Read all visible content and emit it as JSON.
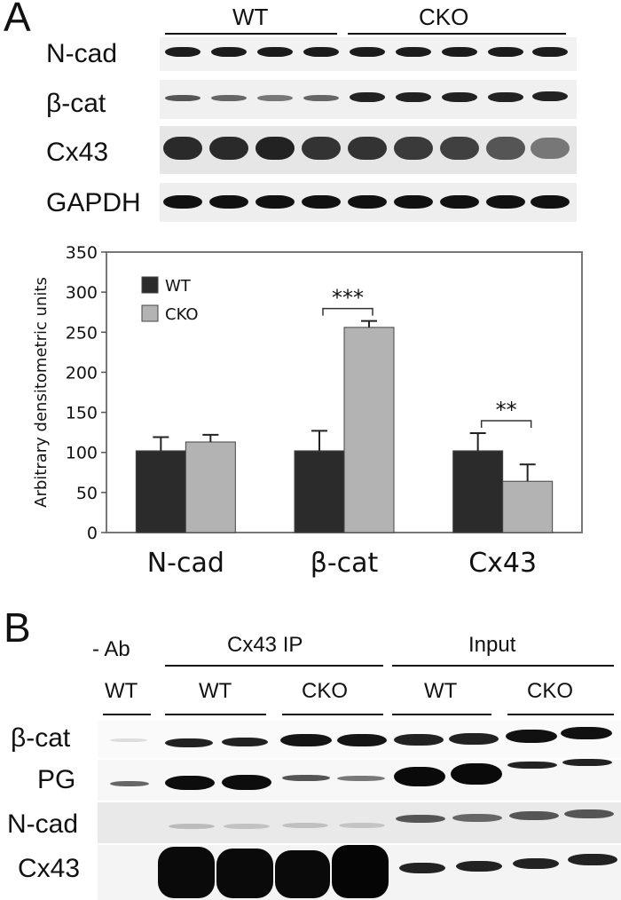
{
  "panel_a": {
    "letter": "A",
    "groups": [
      "WT",
      "CKO"
    ],
    "blot_labels": [
      "N-cad",
      "β-cat",
      "Cx43",
      "GAPDH"
    ]
  },
  "chart_data": {
    "type": "bar",
    "categories": [
      "N-cad",
      "β-cat",
      "Cx43"
    ],
    "series": [
      {
        "name": "WT",
        "values": [
          102,
          102,
          102
        ],
        "errors": [
          17,
          25,
          22
        ],
        "color": "#2b2b2b"
      },
      {
        "name": "CKO",
        "values": [
          113,
          256,
          64
        ],
        "errors": [
          9,
          8,
          21
        ],
        "color": "#b3b3b3"
      }
    ],
    "ylabel": "Arbitrary densitometric units",
    "xlabel": "",
    "ylim": [
      0,
      350
    ],
    "yticks": [
      0,
      50,
      100,
      150,
      200,
      250,
      300,
      350
    ],
    "legend": "top-left",
    "annotations": [
      {
        "category": "β-cat",
        "text": "***"
      },
      {
        "category": "Cx43",
        "text": "**"
      }
    ]
  },
  "panel_b": {
    "letter": "B",
    "no_ab_label": "- Ab",
    "ip_label": "Cx43 IP",
    "input_label": "Input",
    "lane_groups": [
      "WT",
      "WT",
      "CKO",
      "WT",
      "CKO"
    ],
    "blot_labels": [
      "β-cat",
      "PG",
      "N-cad",
      "Cx43"
    ]
  },
  "colors": {
    "wt": "#2b2b2b",
    "cko": "#b3b3b3",
    "band": "#1a1a1a"
  }
}
